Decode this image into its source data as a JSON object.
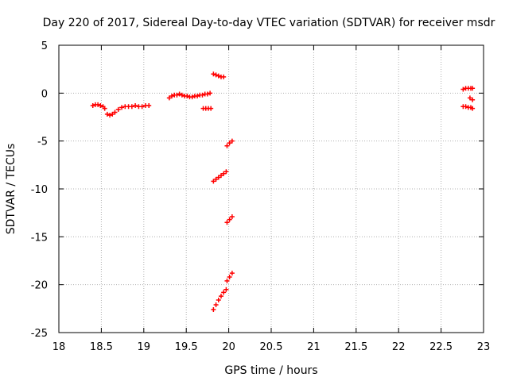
{
  "chart_data": {
    "type": "scatter",
    "title": "Day 220 of 2017, Sidereal Day-to-day VTEC variation (SDTVAR) for receiver msdr",
    "xlabel": "GPS time / hours",
    "ylabel": "SDTVAR / TECUs",
    "xlim": [
      18,
      23
    ],
    "ylim": [
      -25,
      5
    ],
    "x_ticks": [
      18,
      18.5,
      19,
      19.5,
      20,
      20.5,
      21,
      21.5,
      22,
      22.5,
      23
    ],
    "x_tick_labels": [
      "18",
      "18.5",
      "19",
      "19.5",
      "20",
      "20.5",
      "21",
      "21.5",
      "22",
      "22.5",
      "23"
    ],
    "y_ticks": [
      5,
      0,
      -5,
      -10,
      -15,
      -20,
      -25
    ],
    "y_tick_labels": [
      "5",
      "0",
      "-5",
      "-10",
      "-15",
      "-20",
      "-25"
    ],
    "grid": true,
    "marker": "plus",
    "color": "#ff0000",
    "series": [
      {
        "name": "seg1",
        "x": [
          18.4,
          18.43,
          18.46,
          18.49,
          18.52,
          18.54
        ],
        "y": [
          -1.3,
          -1.2,
          -1.2,
          -1.3,
          -1.4,
          -1.6
        ]
      },
      {
        "name": "seg2",
        "x": [
          18.57,
          18.6,
          18.63,
          18.66,
          18.7,
          18.74,
          18.78,
          18.82,
          18.86,
          18.9,
          18.94,
          18.98,
          19.02,
          19.06
        ],
        "y": [
          -2.2,
          -2.3,
          -2.2,
          -2.0,
          -1.7,
          -1.5,
          -1.4,
          -1.4,
          -1.4,
          -1.3,
          -1.4,
          -1.4,
          -1.3,
          -1.3
        ]
      },
      {
        "name": "seg3",
        "x": [
          19.3,
          19.33,
          19.36,
          19.39,
          19.42,
          19.45,
          19.48,
          19.51,
          19.54,
          19.57,
          19.6,
          19.63,
          19.66,
          19.69,
          19.72,
          19.75,
          19.78
        ],
        "y": [
          -0.5,
          -0.3,
          -0.2,
          -0.2,
          -0.1,
          -0.2,
          -0.3,
          -0.3,
          -0.4,
          -0.4,
          -0.3,
          -0.3,
          -0.2,
          -0.2,
          -0.1,
          -0.1,
          0.0
        ]
      },
      {
        "name": "seg4",
        "x": [
          19.7,
          19.73,
          19.76,
          19.79
        ],
        "y": [
          -1.6,
          -1.6,
          -1.6,
          -1.6
        ]
      },
      {
        "name": "seg5",
        "x": [
          19.82,
          19.85,
          19.88,
          19.91,
          19.94
        ],
        "y": [
          2.0,
          1.9,
          1.8,
          1.7,
          1.7
        ]
      },
      {
        "name": "seg6",
        "x": [
          19.82,
          19.85,
          19.88,
          19.91,
          19.94,
          19.97
        ],
        "y": [
          -9.2,
          -9.0,
          -8.8,
          -8.6,
          -8.4,
          -8.2
        ]
      },
      {
        "name": "seg7",
        "x": [
          19.98,
          20.01,
          20.04
        ],
        "y": [
          -5.5,
          -5.2,
          -5.0
        ]
      },
      {
        "name": "seg8",
        "x": [
          19.98,
          20.01,
          20.04
        ],
        "y": [
          -13.5,
          -13.2,
          -12.9
        ]
      },
      {
        "name": "seg9",
        "x": [
          19.82,
          19.85,
          19.88,
          19.91,
          19.94,
          19.97
        ],
        "y": [
          -22.6,
          -22.1,
          -21.6,
          -21.2,
          -20.8,
          -20.5
        ]
      },
      {
        "name": "seg10",
        "x": [
          19.98,
          20.01,
          20.04
        ],
        "y": [
          -19.6,
          -19.2,
          -18.8
        ]
      },
      {
        "name": "seg11",
        "x": [
          22.76,
          22.79,
          22.82,
          22.85,
          22.87
        ],
        "y": [
          0.4,
          0.5,
          0.5,
          0.5,
          0.5
        ]
      },
      {
        "name": "seg12",
        "x": [
          22.84,
          22.87
        ],
        "y": [
          -0.5,
          -0.7
        ]
      },
      {
        "name": "seg13",
        "x": [
          22.76,
          22.79,
          22.82,
          22.85,
          22.87
        ],
        "y": [
          -1.4,
          -1.4,
          -1.5,
          -1.5,
          -1.6
        ]
      }
    ]
  }
}
